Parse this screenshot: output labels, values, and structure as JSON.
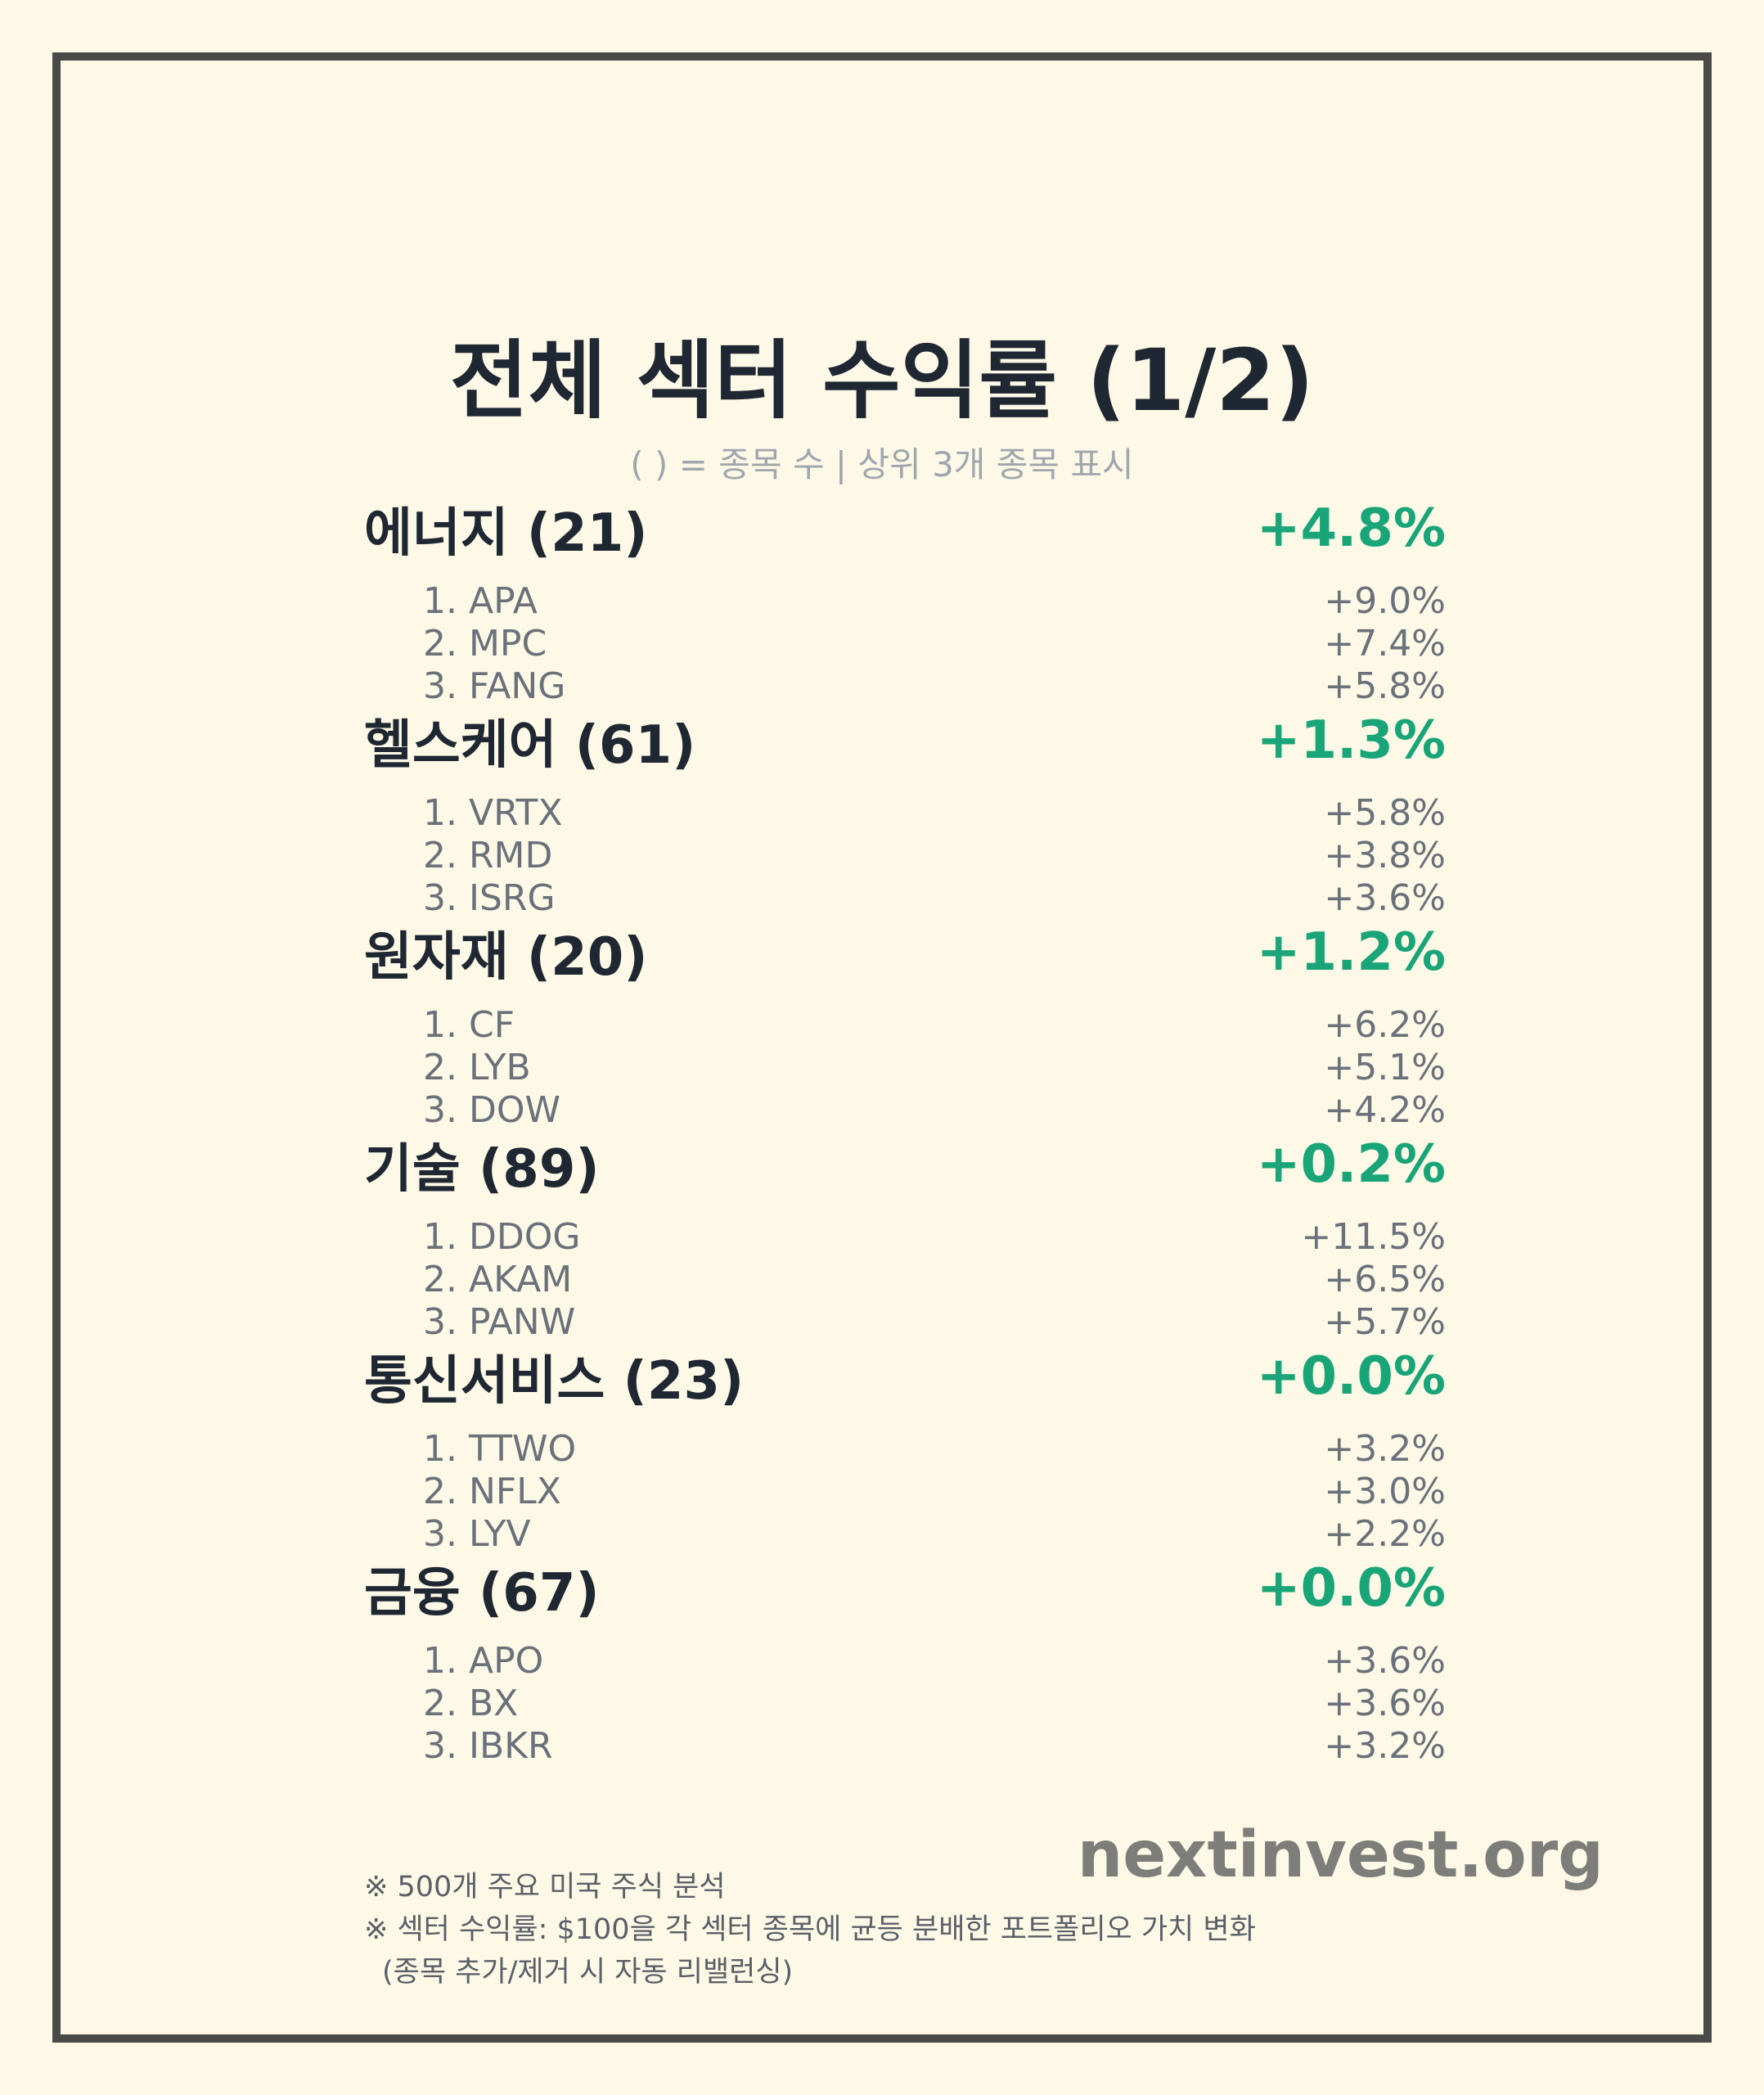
{
  "title": "전체 섹터 수익률 (1/2)",
  "subtitle": "( ) = 종목 수 | 상위 3개 종목 표시",
  "sectors": [
    {
      "name": "에너지 (21)",
      "return": "+4.8%",
      "stocks": [
        {
          "label": "1. APA",
          "return": "+9.0%"
        },
        {
          "label": "2. MPC",
          "return": "+7.4%"
        },
        {
          "label": "3. FANG",
          "return": "+5.8%"
        }
      ]
    },
    {
      "name": "헬스케어 (61)",
      "return": "+1.3%",
      "stocks": [
        {
          "label": "1. VRTX",
          "return": "+5.8%"
        },
        {
          "label": "2. RMD",
          "return": "+3.8%"
        },
        {
          "label": "3. ISRG",
          "return": "+3.6%"
        }
      ]
    },
    {
      "name": "원자재 (20)",
      "return": "+1.2%",
      "stocks": [
        {
          "label": "1. CF",
          "return": "+6.2%"
        },
        {
          "label": "2. LYB",
          "return": "+5.1%"
        },
        {
          "label": "3. DOW",
          "return": "+4.2%"
        }
      ]
    },
    {
      "name": "기술 (89)",
      "return": "+0.2%",
      "stocks": [
        {
          "label": "1. DDOG",
          "return": "+11.5%"
        },
        {
          "label": "2. AKAM",
          "return": "+6.5%"
        },
        {
          "label": "3. PANW",
          "return": "+5.7%"
        }
      ]
    },
    {
      "name": "통신서비스 (23)",
      "return": "+0.0%",
      "stocks": [
        {
          "label": "1. TTWO",
          "return": "+3.2%"
        },
        {
          "label": "2. NFLX",
          "return": "+3.0%"
        },
        {
          "label": "3. LYV",
          "return": "+2.2%"
        }
      ]
    },
    {
      "name": "금융 (67)",
      "return": "+0.0%",
      "stocks": [
        {
          "label": "1. APO",
          "return": "+3.6%"
        },
        {
          "label": "2. BX",
          "return": "+3.6%"
        },
        {
          "label": "3. IBKR",
          "return": "+3.2%"
        }
      ]
    }
  ],
  "brand": "nextinvest.org",
  "notes": [
    "※ 500개 주요 미국 주식 분석",
    "※ 섹터 수익률: $100을 각 섹터 종목에 균등 분배한 포트폴리오 가치 변화",
    "(종목 추가/제거 시 자동 리밸런싱)"
  ],
  "colors": {
    "background": "#fef9e7",
    "positive": "#1aa579",
    "text": "#1f2733",
    "frame": "#4a4a48"
  }
}
